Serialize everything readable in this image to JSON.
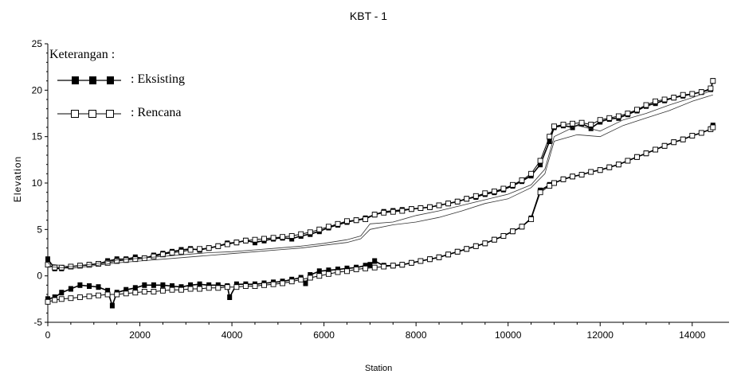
{
  "chart_data": {
    "type": "line",
    "title": "KBT          - 1",
    "xlabel": "Station",
    "ylabel": "Elevation",
    "xlim": [
      0,
      14800
    ],
    "ylim": [
      -5,
      25
    ],
    "xticks": [
      0,
      2000,
      4000,
      6000,
      8000,
      10000,
      12000,
      14000
    ],
    "yticks": [
      -5,
      0,
      5,
      10,
      15,
      20,
      25
    ],
    "legend": {
      "title": "Keterangan :",
      "placement": "top-left",
      "items": [
        {
          "label": ": Eksisting",
          "marker": "filled-square"
        },
        {
          "label": ": Rencana",
          "marker": "open-square"
        }
      ]
    },
    "series": [
      {
        "legend_ref": 0,
        "style": "filled",
        "x": [
          0,
          150,
          300,
          500,
          700,
          900,
          1100,
          1300,
          1500,
          1700,
          1900,
          2100,
          2300,
          2500,
          2700,
          2900,
          3100,
          3300,
          3500,
          3700,
          3900,
          4100,
          4300,
          4500,
          4700,
          4900,
          5100,
          5300,
          5500,
          5700,
          5900,
          6100,
          6300,
          6500,
          6700,
          6900,
          7100,
          7300,
          7500,
          7700,
          7900,
          8100,
          8300,
          8500,
          8700,
          8900,
          9100,
          9300,
          9500,
          9700,
          9900,
          10100,
          10300,
          10500,
          10700,
          10900,
          11000,
          11200,
          11400,
          11600,
          11800,
          12000,
          12200,
          12400,
          12600,
          12800,
          13000,
          13200,
          13400,
          13600,
          13800,
          14000,
          14200,
          14400,
          14450
        ],
        "values": [
          1.8,
          0.8,
          0.8,
          1.0,
          1.1,
          1.2,
          1.3,
          1.6,
          1.8,
          1.8,
          2.0,
          1.9,
          2.2,
          2.4,
          2.6,
          2.8,
          2.9,
          2.8,
          3.0,
          3.2,
          3.5,
          3.6,
          3.8,
          3.6,
          3.8,
          4.0,
          4.1,
          4.0,
          4.3,
          4.5,
          4.8,
          5.2,
          5.5,
          5.8,
          6.0,
          6.2,
          6.6,
          6.9,
          7.0,
          7.1,
          7.2,
          7.3,
          7.4,
          7.6,
          7.8,
          8.0,
          8.3,
          8.5,
          8.8,
          9.0,
          9.3,
          9.7,
          10.2,
          10.8,
          12.0,
          14.5,
          16.0,
          16.2,
          16.0,
          16.4,
          15.9,
          16.6,
          16.9,
          17.0,
          17.4,
          17.8,
          18.3,
          18.6,
          18.9,
          19.2,
          19.4,
          19.6,
          19.8,
          20.1,
          21.0
        ]
      },
      {
        "legend_ref": 1,
        "style": "open",
        "x": [
          0,
          150,
          300,
          500,
          700,
          900,
          1100,
          1300,
          1500,
          1700,
          1900,
          2100,
          2300,
          2500,
          2700,
          2900,
          3100,
          3300,
          3500,
          3700,
          3900,
          4100,
          4300,
          4500,
          4700,
          4900,
          5100,
          5300,
          5500,
          5700,
          5900,
          6100,
          6300,
          6500,
          6700,
          6900,
          7100,
          7300,
          7500,
          7700,
          7900,
          8100,
          8300,
          8500,
          8700,
          8900,
          9100,
          9300,
          9500,
          9700,
          9900,
          10100,
          10300,
          10500,
          10700,
          10900,
          11000,
          11200,
          11400,
          11600,
          11800,
          12000,
          12200,
          12400,
          12600,
          12800,
          13000,
          13200,
          13400,
          13600,
          13800,
          14000,
          14200,
          14400,
          14450
        ],
        "values": [
          1.2,
          0.9,
          0.9,
          1.0,
          1.1,
          1.2,
          1.3,
          1.4,
          1.6,
          1.7,
          1.8,
          1.9,
          2.1,
          2.3,
          2.5,
          2.6,
          2.8,
          2.9,
          3.0,
          3.2,
          3.4,
          3.6,
          3.8,
          3.9,
          4.0,
          4.1,
          4.2,
          4.3,
          4.5,
          4.7,
          5.0,
          5.3,
          5.6,
          5.9,
          6.0,
          6.1,
          6.6,
          6.8,
          6.9,
          7.0,
          7.2,
          7.3,
          7.4,
          7.6,
          7.8,
          8.0,
          8.3,
          8.6,
          8.9,
          9.1,
          9.4,
          9.8,
          10.3,
          11.0,
          12.4,
          15.0,
          16.1,
          16.3,
          16.4,
          16.5,
          16.3,
          16.8,
          17.0,
          17.2,
          17.5,
          17.9,
          18.4,
          18.8,
          19.0,
          19.2,
          19.5,
          19.6,
          19.8,
          20.2,
          21.0
        ]
      },
      {
        "legend_ref": 0,
        "style": "filled",
        "x": [
          0,
          150,
          300,
          500,
          700,
          900,
          1100,
          1300,
          1400,
          1500,
          1700,
          1900,
          2100,
          2300,
          2500,
          2700,
          2900,
          3100,
          3300,
          3500,
          3700,
          3900,
          3950,
          4100,
          4300,
          4500,
          4700,
          4900,
          5100,
          5300,
          5500,
          5600,
          5700,
          5900,
          6100,
          6300,
          6500,
          6700,
          6900,
          7000,
          7100,
          7300,
          7500,
          7700,
          7900,
          8100,
          8300,
          8500,
          8700,
          8900,
          9100,
          9300,
          9500,
          9700,
          9900,
          10100,
          10300,
          10500,
          10700,
          10900,
          11000,
          11200,
          11400,
          11600,
          11800,
          12000,
          12200,
          12400,
          12600,
          12800,
          13000,
          13200,
          13400,
          13600,
          13800,
          14000,
          14200,
          14400,
          14450
        ],
        "values": [
          -2.5,
          -2.3,
          -1.8,
          -1.4,
          -1.0,
          -1.1,
          -1.2,
          -1.6,
          -3.2,
          -1.8,
          -1.5,
          -1.3,
          -1.0,
          -1.0,
          -1.0,
          -1.1,
          -1.2,
          -1.0,
          -0.9,
          -1.0,
          -1.0,
          -1.1,
          -2.3,
          -0.9,
          -0.9,
          -0.9,
          -0.8,
          -0.7,
          -0.6,
          -0.4,
          -0.2,
          -0.8,
          0.1,
          0.5,
          0.6,
          0.7,
          0.8,
          0.9,
          1.1,
          1.2,
          1.6,
          1.1,
          1.1,
          1.2,
          1.4,
          1.6,
          1.8,
          2.0,
          2.3,
          2.6,
          2.9,
          3.2,
          3.5,
          3.9,
          4.3,
          4.8,
          5.3,
          6.2,
          9.2,
          9.8,
          10.0,
          10.4,
          10.7,
          10.9,
          11.2,
          11.4,
          11.7,
          12.0,
          12.4,
          12.8,
          13.2,
          13.6,
          14.0,
          14.4,
          14.7,
          15.1,
          15.4,
          15.8,
          16.2
        ]
      },
      {
        "legend_ref": 1,
        "style": "open",
        "x": [
          0,
          150,
          300,
          500,
          700,
          900,
          1100,
          1300,
          1500,
          1700,
          1900,
          2100,
          2300,
          2500,
          2700,
          2900,
          3100,
          3300,
          3500,
          3700,
          3900,
          4100,
          4300,
          4500,
          4700,
          4900,
          5100,
          5300,
          5500,
          5700,
          5900,
          6100,
          6300,
          6500,
          6700,
          6900,
          7100,
          7300,
          7500,
          7700,
          7900,
          8100,
          8300,
          8500,
          8700,
          8900,
          9100,
          9300,
          9500,
          9700,
          9900,
          10100,
          10300,
          10500,
          10700,
          10900,
          11000,
          11200,
          11400,
          11600,
          11800,
          12000,
          12200,
          12400,
          12600,
          12800,
          13000,
          13200,
          13400,
          13600,
          13800,
          14000,
          14200,
          14400,
          14450
        ],
        "values": [
          -2.8,
          -2.6,
          -2.5,
          -2.4,
          -2.3,
          -2.2,
          -2.1,
          -2.0,
          -2.0,
          -1.9,
          -1.8,
          -1.7,
          -1.7,
          -1.6,
          -1.5,
          -1.5,
          -1.4,
          -1.4,
          -1.3,
          -1.3,
          -1.2,
          -1.2,
          -1.1,
          -1.1,
          -1.0,
          -0.9,
          -0.8,
          -0.6,
          -0.4,
          -0.2,
          0.0,
          0.2,
          0.4,
          0.5,
          0.7,
          0.8,
          0.9,
          1.0,
          1.1,
          1.2,
          1.4,
          1.6,
          1.8,
          2.0,
          2.3,
          2.6,
          2.9,
          3.2,
          3.5,
          3.9,
          4.3,
          4.8,
          5.3,
          6.1,
          9.0,
          9.7,
          10.0,
          10.4,
          10.7,
          10.9,
          11.2,
          11.4,
          11.7,
          12.0,
          12.4,
          12.8,
          13.2,
          13.6,
          14.0,
          14.4,
          14.7,
          15.1,
          15.4,
          15.8,
          16.0
        ]
      },
      {
        "style": "thin",
        "x": [
          0,
          500,
          1000,
          1500,
          2000,
          2500,
          3000,
          3500,
          4000,
          4500,
          5000,
          5500,
          6000,
          6500,
          6800,
          7000,
          7500,
          8000,
          8500,
          9000,
          9500,
          10000,
          10500,
          10800,
          11000,
          11500,
          12000,
          12500,
          13000,
          13500,
          14000,
          14450
        ],
        "values": [
          1.0,
          0.8,
          1.1,
          1.4,
          1.6,
          1.8,
          2.0,
          2.2,
          2.4,
          2.6,
          2.8,
          3.0,
          3.3,
          3.6,
          4.0,
          5.0,
          5.5,
          5.8,
          6.3,
          7.0,
          7.8,
          8.3,
          9.5,
          11.0,
          14.5,
          15.2,
          15.0,
          16.2,
          17.0,
          17.8,
          18.8,
          19.5
        ]
      },
      {
        "style": "thin",
        "x": [
          0,
          500,
          1000,
          1500,
          2000,
          2500,
          3000,
          3500,
          4000,
          4500,
          5000,
          5500,
          6000,
          6500,
          6800,
          7000,
          7500,
          8000,
          8500,
          9000,
          9500,
          10000,
          10500,
          10800,
          11000,
          11500,
          12000,
          12500,
          13000,
          13500,
          14000,
          14450
        ],
        "values": [
          1.3,
          1.0,
          1.3,
          1.7,
          1.9,
          2.1,
          2.3,
          2.5,
          2.6,
          2.8,
          3.0,
          3.2,
          3.5,
          3.9,
          4.3,
          5.6,
          5.8,
          6.5,
          7.0,
          7.6,
          8.2,
          8.8,
          9.8,
          11.5,
          15.0,
          16.2,
          15.6,
          16.8,
          17.5,
          18.4,
          19.2,
          20.0
        ]
      }
    ]
  }
}
